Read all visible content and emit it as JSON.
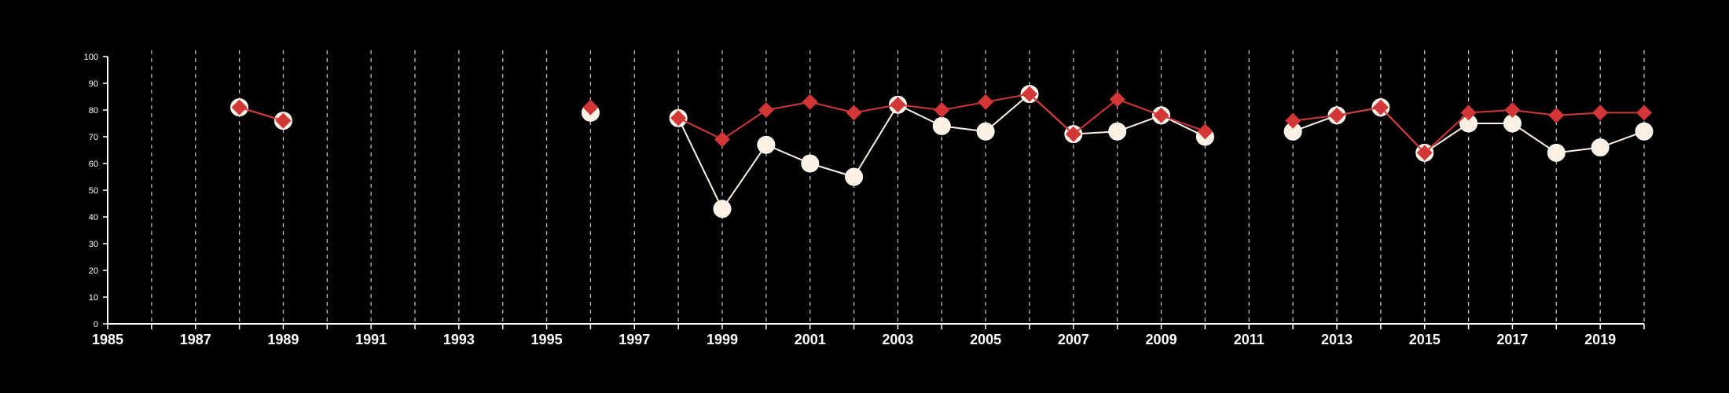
{
  "chart_data": {
    "type": "line",
    "title": "",
    "xlabel": "",
    "ylabel": "",
    "xlim": [
      1985,
      2020
    ],
    "ylim": [
      0,
      100
    ],
    "grid": {
      "x": "dashed vertical lines at every year",
      "y": "none"
    },
    "background": "#000000",
    "x_ticks": [
      1985,
      1987,
      1989,
      1991,
      1993,
      1995,
      1997,
      1999,
      2001,
      2003,
      2005,
      2007,
      2009,
      2011,
      2013,
      2015,
      2017,
      2019
    ],
    "y_ticks": [
      0,
      10,
      20,
      30,
      40,
      50,
      60,
      70,
      80,
      90,
      100
    ],
    "series": [
      {
        "marker": "circle",
        "color": "#fdf1e4",
        "x": [
          1988,
          1989,
          1996,
          1998,
          1999,
          2000,
          2001,
          2002,
          2003,
          2004,
          2005,
          2006,
          2007,
          2008,
          2009,
          2010,
          2012,
          2013,
          2014,
          2015,
          2016,
          2017,
          2018,
          2019,
          2020
        ],
        "values": [
          81,
          76,
          79,
          77,
          43,
          67,
          60,
          55,
          82,
          74,
          72,
          86,
          71,
          72,
          78,
          70,
          72,
          78,
          81,
          64,
          75,
          75,
          64,
          66,
          72
        ]
      },
      {
        "marker": "diamond",
        "color": "#d33636",
        "x": [
          1988,
          1989,
          1996,
          1998,
          1999,
          2000,
          2001,
          2002,
          2003,
          2004,
          2005,
          2006,
          2007,
          2008,
          2009,
          2010,
          2012,
          2013,
          2014,
          2015,
          2016,
          2017,
          2018,
          2019,
          2020
        ],
        "values": [
          81,
          76,
          81,
          77,
          69,
          80,
          83,
          79,
          82,
          80,
          83,
          86,
          71,
          84,
          78,
          72,
          76,
          78,
          81,
          64,
          79,
          80,
          78,
          79,
          79
        ]
      }
    ]
  }
}
